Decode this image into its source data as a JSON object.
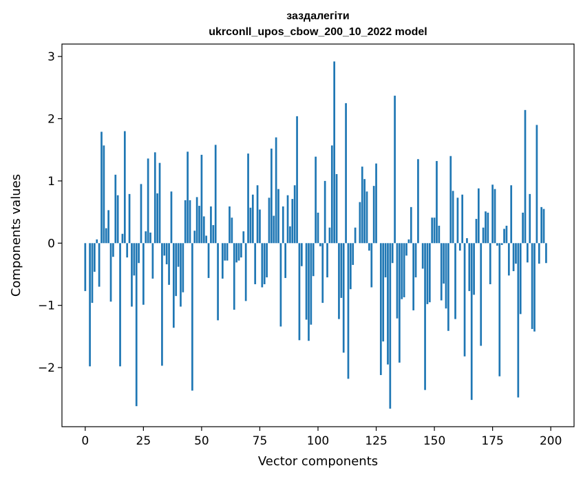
{
  "chart_data": {
    "type": "bar",
    "title_line1": "заздалегіти",
    "title_line2": "ukrconll_upos_cbow_200_10_2022 model",
    "xlabel": "Vector components",
    "ylabel": "Components values",
    "xlim": [
      -10,
      210
    ],
    "ylim": [
      -2.95,
      3.2
    ],
    "xticks": [
      0,
      25,
      50,
      75,
      100,
      125,
      150,
      175,
      200
    ],
    "xtick_labels": [
      "0",
      "25",
      "50",
      "75",
      "100",
      "125",
      "150",
      "175",
      "200"
    ],
    "yticks": [
      -2,
      -1,
      0,
      1,
      2,
      3
    ],
    "ytick_labels": [
      "−2",
      "−1",
      "0",
      "1",
      "2",
      "3"
    ],
    "bar_color": "#1f77b4",
    "values": [
      -0.77,
      0.0,
      -1.98,
      -0.96,
      -0.46,
      0.06,
      -0.7,
      1.79,
      1.57,
      0.24,
      0.53,
      -0.94,
      -0.22,
      1.1,
      0.77,
      -1.98,
      0.15,
      1.8,
      -0.23,
      0.79,
      -1.02,
      -0.52,
      -2.62,
      -0.32,
      0.95,
      -0.99,
      0.19,
      1.36,
      0.17,
      -0.57,
      1.46,
      0.8,
      1.29,
      -1.97,
      -0.2,
      -0.34,
      -0.67,
      0.83,
      -1.36,
      -0.85,
      -0.38,
      -1.02,
      -0.79,
      0.69,
      1.47,
      0.69,
      -2.37,
      0.2,
      0.74,
      0.6,
      1.42,
      0.43,
      0.12,
      -0.56,
      0.59,
      0.29,
      1.58,
      -1.24,
      0.0,
      -0.57,
      -0.28,
      -0.28,
      0.59,
      0.41,
      -1.07,
      -0.31,
      -0.28,
      -0.23,
      0.19,
      -0.93,
      1.44,
      0.57,
      0.78,
      -0.66,
      0.93,
      0.54,
      -0.71,
      -0.66,
      -0.55,
      0.73,
      1.52,
      0.44,
      1.7,
      0.87,
      -1.34,
      0.59,
      -0.56,
      0.77,
      0.27,
      0.71,
      0.93,
      2.04,
      -1.56,
      -0.37,
      0.0,
      -1.23,
      -1.57,
      -1.31,
      -0.53,
      1.39,
      0.49,
      -0.05,
      -0.96,
      1.0,
      -0.55,
      0.25,
      1.57,
      2.92,
      1.11,
      -1.22,
      -0.88,
      -1.76,
      2.25,
      -2.18,
      -0.74,
      -0.35,
      0.25,
      0.0,
      0.66,
      1.23,
      1.03,
      0.83,
      -0.12,
      -0.71,
      0.92,
      1.28,
      0.0,
      -2.12,
      -1.58,
      -0.55,
      -1.95,
      -2.66,
      -0.32,
      2.37,
      -1.21,
      -1.92,
      -0.9,
      -0.87,
      -0.2,
      0.06,
      0.58,
      -1.08,
      -0.55,
      1.35,
      0.0,
      -0.41,
      -2.36,
      -0.98,
      -0.95,
      0.41,
      0.41,
      1.32,
      0.28,
      -0.92,
      -0.65,
      -1.05,
      -1.41,
      1.4,
      0.84,
      -1.22,
      0.73,
      -0.12,
      0.78,
      -1.82,
      0.08,
      -0.77,
      -2.52,
      -0.83,
      0.39,
      0.88,
      -1.65,
      0.25,
      0.51,
      0.49,
      -0.66,
      0.94,
      0.87,
      -0.04,
      -2.14,
      -0.03,
      0.23,
      0.28,
      -0.52,
      0.93,
      -0.45,
      -0.33,
      -2.48,
      -1.14,
      0.49,
      2.14,
      -0.31,
      0.79,
      -1.38,
      -1.42,
      1.9,
      -0.33,
      0.58,
      0.55,
      -0.32
    ]
  }
}
